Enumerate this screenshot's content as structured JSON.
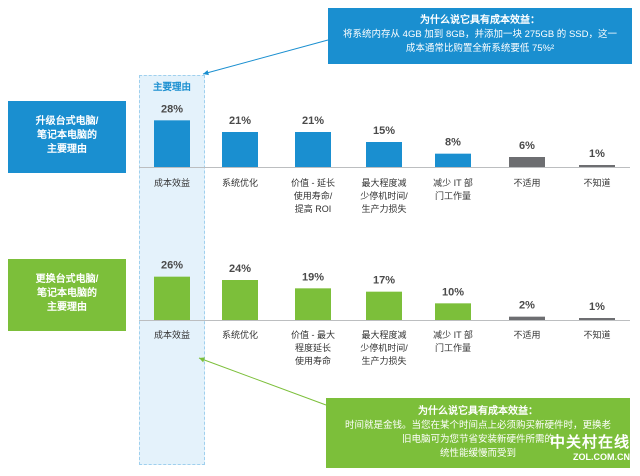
{
  "callout_top": {
    "title": "为什么说它具有成本效益：",
    "line1": "将系统内存从 4GB 加到 8GB，并添加一块 275GB 的 SSD，这一",
    "line2": "成本通常比购置全新系统要低 75%²"
  },
  "callout_bottom": {
    "title": "为什么说它具有成本效益：",
    "line1": "时间就是金钱。当您在某个时间点上必须购买新硬件时，更换老",
    "line2": "旧电脑可为您节省安装新硬件所需的",
    "line3": "统性能缓慢而受到"
  },
  "highlight_label": "主要理由",
  "watermark": {
    "text1": "中关村在线",
    "text2": "ZOL.COM.CN"
  },
  "colors": {
    "blue": "#1a8fd0",
    "green": "#7cbf3a",
    "gray": "#6d6e71",
    "baseline": "#bcbec0"
  },
  "chart_data": [
    {
      "type": "bar",
      "title": "升级台式电脑/笔记本电脑的主要理由",
      "title_lines": [
        "升级台式电脑/",
        "笔记本电脑的",
        "主要理由"
      ],
      "categories": [
        "成本效益",
        "系统优化",
        "价值 - 延长使用寿命/提高 ROI",
        "最大程度减少停机时间/生产力损失",
        "减少 IT 部门工作量",
        "不适用",
        "不知道"
      ],
      "category_lines": [
        [
          "成本效益"
        ],
        [
          "系统优化"
        ],
        [
          "价值 - 延长",
          "使用寿命/",
          "提高 ROI"
        ],
        [
          "最大程度减",
          "少停机时间/",
          "生产力损失"
        ],
        [
          "减少 IT 部",
          "门工作量"
        ],
        [
          "不适用"
        ],
        [
          "不知道"
        ]
      ],
      "values": [
        28,
        21,
        21,
        15,
        8,
        6,
        1
      ],
      "labels": [
        "28%",
        "21%",
        "21%",
        "15%",
        "8%",
        "6%",
        "1%"
      ],
      "bar_colors": [
        "#1a8fd0",
        "#1a8fd0",
        "#1a8fd0",
        "#1a8fd0",
        "#1a8fd0",
        "#6d6e71",
        "#6d6e71"
      ],
      "ylim": [
        0,
        30
      ]
    },
    {
      "type": "bar",
      "title": "更换台式电脑/笔记本电脑的主要理由",
      "title_lines": [
        "更换台式电脑/",
        "笔记本电脑的",
        "主要理由"
      ],
      "categories": [
        "成本效益",
        "系统优化",
        "价值 - 最大程度延长使用寿命",
        "最大程度减少停机时间/生产力损失",
        "减少 IT 部门工作量",
        "不适用",
        "不知道"
      ],
      "category_lines": [
        [
          "成本效益"
        ],
        [
          "系统优化"
        ],
        [
          "价值 - 最大",
          "程度延长",
          "使用寿命"
        ],
        [
          "最大程度减",
          "少停机时间/",
          "生产力损失"
        ],
        [
          "减少 IT 部",
          "门工作量"
        ],
        [
          "不适用"
        ],
        [
          "不知道"
        ]
      ],
      "values": [
        26,
        24,
        19,
        17,
        10,
        2,
        1
      ],
      "labels": [
        "26%",
        "24%",
        "19%",
        "17%",
        "10%",
        "2%",
        "1%"
      ],
      "bar_colors": [
        "#7cbf3a",
        "#7cbf3a",
        "#7cbf3a",
        "#7cbf3a",
        "#7cbf3a",
        "#6d6e71",
        "#6d6e71"
      ],
      "ylim": [
        0,
        30
      ]
    }
  ]
}
